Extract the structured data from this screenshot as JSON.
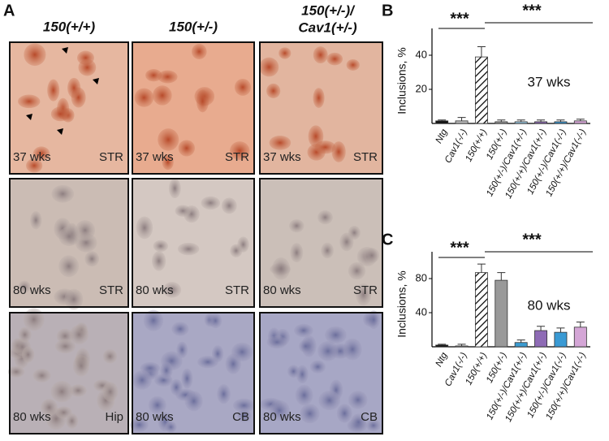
{
  "panel_a": {
    "letter": "A",
    "columns": [
      "150(+/+)",
      "150(+/-)",
      [
        "150(+/-)/",
        "Cav1(+/-)"
      ]
    ],
    "rows": [
      [
        [
          "37 wks",
          "STR"
        ],
        [
          "37 wks",
          "STR"
        ],
        [
          "37 wks",
          "STR"
        ]
      ],
      [
        [
          "80 wks",
          "STR"
        ],
        [
          "80 wks",
          "STR"
        ],
        [
          "80 wks",
          "STR"
        ]
      ],
      [
        [
          "80 wks",
          "Hip"
        ],
        [
          "80 wks",
          "CB"
        ],
        [
          "80 wks",
          "CB"
        ]
      ]
    ]
  },
  "chart_data": [
    {
      "type": "bar",
      "letter": "B",
      "ylabel": "Inclusions, %",
      "label": "37 wks",
      "annotations": [
        "***",
        "***"
      ],
      "categories": [
        "Ntg",
        "Cav1(-/-)",
        "150(+/+)",
        "150(+/-)",
        "150(+/-)/Cav1(+/-)",
        "150(+/+)/Cav1(+/-)",
        "150(+/-)/Cav1(-/-)",
        "150(+/+)/Cav1(-/-)"
      ],
      "values": [
        1.5,
        1.5,
        39,
        1,
        1,
        1,
        1,
        1.5
      ],
      "errors": [
        0.5,
        2,
        6,
        1,
        1,
        1,
        1,
        1
      ],
      "colors": [
        "#111111",
        "#bbbbbb",
        "#ffffff",
        "#999999",
        "#9fd0ea",
        "#8e6bb5",
        "#3a9ad4",
        "#d4a6d6"
      ],
      "hatch": [
        false,
        false,
        true,
        false,
        false,
        false,
        false,
        false
      ],
      "ylim": [
        0,
        50
      ],
      "yticks": [
        20,
        40
      ]
    },
    {
      "type": "bar",
      "letter": "C",
      "ylabel": "Inclusions, %",
      "label": "80 wks",
      "annotations": [
        "***",
        "***"
      ],
      "categories": [
        "Ntg",
        "Cav1(-/-)",
        "150(+/+)",
        "150(+/-)",
        "150(+/-)/Cav1(+/-)",
        "150(+/+)/Cav1(+/-)",
        "150(+/-)/Cav1(-/-)",
        "150(+/+)/Cav1(-/-)"
      ],
      "values": [
        2,
        1,
        87,
        78,
        5,
        19,
        17,
        23
      ],
      "errors": [
        1,
        2,
        10,
        9,
        3,
        5,
        5,
        6
      ],
      "colors": [
        "#111111",
        "#bbbbbb",
        "#ffffff",
        "#999999",
        "#3b9bd0",
        "#8e6bb5",
        "#3a9ad4",
        "#d4a6d6"
      ],
      "hatch": [
        false,
        false,
        true,
        false,
        false,
        false,
        false,
        false
      ],
      "ylim": [
        0,
        100
      ],
      "yticks": [
        40,
        80
      ]
    }
  ]
}
